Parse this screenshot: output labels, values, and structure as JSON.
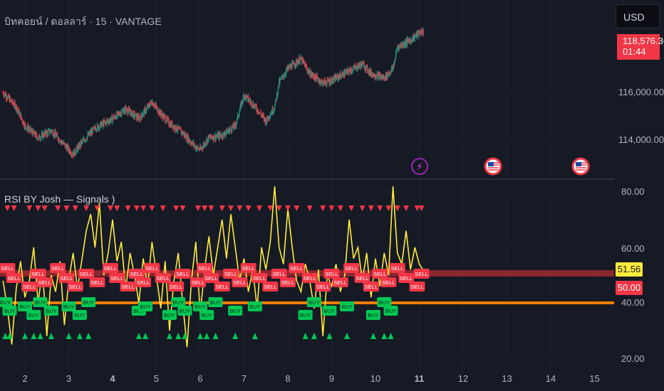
{
  "header": {
    "title": "บิทคอยน์ / ดอลลาร์ · 15 · VANTAGE",
    "currency": "USD"
  },
  "price_axis": {
    "labels": [
      "118,576.36",
      "116,000.00",
      "114,000.00"
    ],
    "last_price": "118,576.36",
    "countdown": "01:44"
  },
  "indicator": {
    "title": "RSI BY Josh —  Signals )",
    "axis_labels": [
      "80.00",
      "60.00",
      "40.00",
      "20.00"
    ],
    "rsi_value": "51.56",
    "level_value": "50.00",
    "buy_label": "BUY",
    "sell_label": "SELL"
  },
  "time_axis": {
    "labels": [
      "2",
      "3",
      "4",
      "5",
      "6",
      "7",
      "8",
      "9",
      "10",
      "11",
      "12",
      "13",
      "14",
      "15"
    ]
  },
  "colors": {
    "bg": "#161a25",
    "up": "#089981",
    "down": "#f23645",
    "rsi": "#ffeb3b",
    "level_line": "#f57c00",
    "buy": "#00c853",
    "sell": "#f23645"
  },
  "chart_data": [
    {
      "type": "candlestick",
      "title": "บิทคอยน์ / ดอลลาร์ · 15 · VANTAGE",
      "y_ticks": [
        114000,
        116000
      ],
      "x_ticks": [
        2,
        3,
        4,
        5,
        6,
        7,
        8,
        9,
        10,
        11,
        12,
        13,
        14,
        15
      ],
      "last_price": 118576.36,
      "close_path": [
        [
          1.5,
          116000
        ],
        [
          1.8,
          115400
        ],
        [
          2.0,
          114600
        ],
        [
          2.3,
          114100
        ],
        [
          2.6,
          114400
        ],
        [
          2.9,
          113800
        ],
        [
          3.1,
          113400
        ],
        [
          3.3,
          113900
        ],
        [
          3.6,
          114500
        ],
        [
          4.0,
          114900
        ],
        [
          4.3,
          115300
        ],
        [
          4.6,
          114900
        ],
        [
          4.9,
          115600
        ],
        [
          5.1,
          115100
        ],
        [
          5.3,
          114700
        ],
        [
          5.6,
          114300
        ],
        [
          5.9,
          113700
        ],
        [
          6.0,
          113600
        ],
        [
          6.2,
          114100
        ],
        [
          6.5,
          114200
        ],
        [
          6.8,
          114600
        ],
        [
          7.0,
          115900
        ],
        [
          7.3,
          115300
        ],
        [
          7.5,
          114800
        ],
        [
          7.7,
          115400
        ],
        [
          7.8,
          116400
        ],
        [
          8.0,
          117000
        ],
        [
          8.3,
          117400
        ],
        [
          8.5,
          116800
        ],
        [
          8.8,
          116400
        ],
        [
          9.0,
          116500
        ],
        [
          9.4,
          116900
        ],
        [
          9.7,
          117200
        ],
        [
          9.9,
          116800
        ],
        [
          10.2,
          116600
        ],
        [
          10.4,
          117000
        ],
        [
          10.5,
          117900
        ],
        [
          10.8,
          118200
        ],
        [
          11.0,
          118500
        ],
        [
          11.1,
          118576.36
        ]
      ]
    },
    {
      "type": "line",
      "title": "RSI BY Josh —  Signals )",
      "ylim": [
        20,
        86
      ],
      "y_ticks": [
        20,
        40,
        60,
        80
      ],
      "levels": [
        50,
        40
      ],
      "last_value": 51.56,
      "rsi_path": [
        [
          1.5,
          48
        ],
        [
          1.6,
          38
        ],
        [
          1.7,
          25
        ],
        [
          1.8,
          45
        ],
        [
          1.9,
          55
        ],
        [
          2.0,
          42
        ],
        [
          2.1,
          48
        ],
        [
          2.2,
          60
        ],
        [
          2.3,
          40
        ],
        [
          2.4,
          52
        ],
        [
          2.5,
          28
        ],
        [
          2.6,
          50
        ],
        [
          2.7,
          44
        ],
        [
          2.8,
          55
        ],
        [
          2.9,
          32
        ],
        [
          3.0,
          48
        ],
        [
          3.1,
          58
        ],
        [
          3.2,
          45
        ],
        [
          3.4,
          66
        ],
        [
          3.5,
          72
        ],
        [
          3.6,
          60
        ],
        [
          3.7,
          76
        ],
        [
          3.8,
          50
        ],
        [
          3.9,
          58
        ],
        [
          4.0,
          70
        ],
        [
          4.1,
          55
        ],
        [
          4.2,
          62
        ],
        [
          4.3,
          45
        ],
        [
          4.4,
          58
        ],
        [
          4.5,
          50
        ],
        [
          4.6,
          40
        ],
        [
          4.7,
          56
        ],
        [
          4.8,
          46
        ],
        [
          4.9,
          62
        ],
        [
          5.0,
          50
        ],
        [
          5.1,
          38
        ],
        [
          5.2,
          55
        ],
        [
          5.3,
          30
        ],
        [
          5.4,
          48
        ],
        [
          5.5,
          58
        ],
        [
          5.6,
          40
        ],
        [
          5.7,
          24
        ],
        [
          5.8,
          48
        ],
        [
          5.9,
          62
        ],
        [
          6.0,
          36
        ],
        [
          6.1,
          52
        ],
        [
          6.2,
          64
        ],
        [
          6.3,
          50
        ],
        [
          6.4,
          60
        ],
        [
          6.5,
          70
        ],
        [
          6.6,
          56
        ],
        [
          6.7,
          72
        ],
        [
          6.8,
          60
        ],
        [
          6.9,
          48
        ],
        [
          7.0,
          56
        ],
        [
          7.1,
          44
        ],
        [
          7.2,
          52
        ],
        [
          7.3,
          38
        ],
        [
          7.4,
          60
        ],
        [
          7.5,
          52
        ],
        [
          7.6,
          62
        ],
        [
          7.7,
          82
        ],
        [
          7.8,
          60
        ],
        [
          7.9,
          54
        ],
        [
          8.0,
          74
        ],
        [
          8.1,
          60
        ],
        [
          8.2,
          48
        ],
        [
          8.3,
          44
        ],
        [
          8.4,
          54
        ],
        [
          8.5,
          48
        ],
        [
          8.6,
          38
        ],
        [
          8.7,
          52
        ],
        [
          8.8,
          28
        ],
        [
          8.9,
          50
        ],
        [
          9.0,
          46
        ],
        [
          9.1,
          54
        ],
        [
          9.2,
          44
        ],
        [
          9.3,
          50
        ],
        [
          9.4,
          70
        ],
        [
          9.5,
          56
        ],
        [
          9.6,
          60
        ],
        [
          9.7,
          48
        ],
        [
          9.8,
          58
        ],
        [
          9.9,
          42
        ],
        [
          10.0,
          56
        ],
        [
          10.1,
          46
        ],
        [
          10.2,
          58
        ],
        [
          10.3,
          50
        ],
        [
          10.4,
          82
        ],
        [
          10.5,
          58
        ],
        [
          10.6,
          54
        ],
        [
          10.7,
          66
        ],
        [
          10.8,
          52
        ],
        [
          10.9,
          60
        ],
        [
          11.0,
          54
        ],
        [
          11.1,
          51.56
        ]
      ],
      "buy_signals_x": [
        1.55,
        1.65,
        2.0,
        2.2,
        2.35,
        2.6,
        3.0,
        3.25,
        3.45,
        4.6,
        4.75,
        5.3,
        5.5,
        5.65,
        6.0,
        6.15,
        6.35,
        6.8,
        7.25,
        8.4,
        8.6,
        8.95,
        9.35,
        9.95,
        10.2,
        10.35
      ],
      "sell_signals_x": [
        1.6,
        1.75,
        2.1,
        2.3,
        2.45,
        2.75,
        2.95,
        3.15,
        3.4,
        3.65,
        3.95,
        4.1,
        4.35,
        4.55,
        4.7,
        4.9,
        5.15,
        5.45,
        5.6,
        5.95,
        6.1,
        6.25,
        6.5,
        6.7,
        6.9,
        7.1,
        7.35,
        7.6,
        7.8,
        8.0,
        8.2,
        8.5,
        8.8,
        9.0,
        9.2,
        9.45,
        9.7,
        9.9,
        10.1,
        10.3,
        10.5,
        10.7,
        10.95,
        11.05
      ]
    }
  ]
}
